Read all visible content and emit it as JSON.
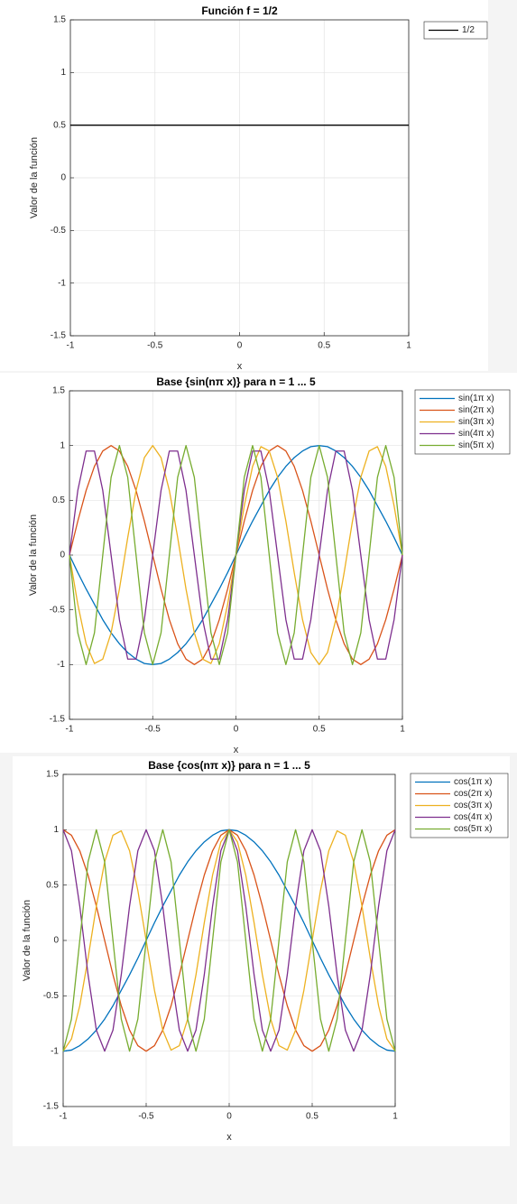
{
  "chart_data": [
    {
      "type": "line",
      "title": "Función f = 1/2",
      "x_label": "x",
      "y_label": "Valor de la función",
      "x": [
        -1,
        1
      ],
      "series": [
        {
          "name": "1/2",
          "color": "#000000",
          "values": [
            0.5,
            0.5
          ]
        }
      ],
      "xlim": [
        -1,
        1
      ],
      "xticks": [
        -1,
        -0.5,
        0,
        0.5,
        1
      ],
      "ylim": [
        -1.5,
        1.5
      ],
      "yticks": [
        -1.5,
        -1,
        -0.5,
        0,
        0.5,
        1,
        1.5
      ],
      "grid": true,
      "legend_location": "northeastoutside"
    },
    {
      "type": "line",
      "title": "Base {sin(nπ x)} para n = 1 ... 5",
      "x_label": "x",
      "y_label": "Valor de la función",
      "x": [
        -1,
        -0.95,
        -0.9,
        -0.85,
        -0.8,
        -0.75,
        -0.7,
        -0.65,
        -0.6,
        -0.55,
        -0.5,
        -0.45,
        -0.4,
        -0.35,
        -0.3,
        -0.25,
        -0.2,
        -0.15,
        -0.1,
        -0.05,
        0,
        0.05,
        0.1,
        0.15,
        0.2,
        0.25,
        0.3,
        0.35,
        0.4,
        0.45,
        0.5,
        0.55,
        0.6,
        0.65,
        0.7,
        0.75,
        0.8,
        0.85,
        0.9,
        0.95,
        1
      ],
      "series": [
        {
          "name": "sin(1π x)",
          "color": "#0072BD",
          "values": [
            0,
            -0.16,
            -0.31,
            -0.45,
            -0.59,
            -0.71,
            -0.81,
            -0.89,
            -0.95,
            -0.99,
            -1,
            -0.99,
            -0.95,
            -0.89,
            -0.81,
            -0.71,
            -0.59,
            -0.45,
            -0.31,
            -0.16,
            0,
            0.16,
            0.31,
            0.45,
            0.59,
            0.71,
            0.81,
            0.89,
            0.95,
            0.99,
            1,
            0.99,
            0.95,
            0.89,
            0.81,
            0.71,
            0.59,
            0.45,
            0.31,
            0.16,
            0
          ]
        },
        {
          "name": "sin(2π x)",
          "color": "#D95319",
          "values": [
            0,
            0.31,
            0.59,
            0.81,
            0.95,
            1,
            0.95,
            0.81,
            0.59,
            0.31,
            0,
            -0.31,
            -0.59,
            -0.81,
            -0.95,
            -1,
            -0.95,
            -0.81,
            -0.59,
            -0.31,
            0,
            0.31,
            0.59,
            0.81,
            0.95,
            1,
            0.95,
            0.81,
            0.59,
            0.31,
            0,
            -0.31,
            -0.59,
            -0.81,
            -0.95,
            -1,
            -0.95,
            -0.81,
            -0.59,
            -0.31,
            0
          ]
        },
        {
          "name": "sin(3π x)",
          "color": "#EDB120",
          "values": [
            0,
            -0.45,
            -0.81,
            -0.99,
            -0.95,
            -0.71,
            -0.31,
            0.16,
            0.59,
            0.89,
            1,
            0.89,
            0.59,
            0.16,
            -0.31,
            -0.71,
            -0.95,
            -0.99,
            -0.81,
            -0.45,
            0,
            0.45,
            0.81,
            0.99,
            0.95,
            0.71,
            0.31,
            -0.16,
            -0.59,
            -0.89,
            -1,
            -0.89,
            -0.59,
            -0.16,
            0.31,
            0.71,
            0.95,
            0.99,
            0.81,
            0.45,
            0
          ]
        },
        {
          "name": "sin(4π x)",
          "color": "#7E2F8E",
          "values": [
            0,
            0.59,
            0.95,
            0.95,
            0.59,
            0,
            -0.59,
            -0.95,
            -0.95,
            -0.59,
            0,
            0.59,
            0.95,
            0.95,
            0.59,
            0,
            -0.59,
            -0.95,
            -0.95,
            -0.59,
            0,
            0.59,
            0.95,
            0.95,
            0.59,
            0,
            -0.59,
            -0.95,
            -0.95,
            -0.59,
            0,
            0.59,
            0.95,
            0.95,
            0.59,
            0,
            -0.59,
            -0.95,
            -0.95,
            -0.59,
            0
          ]
        },
        {
          "name": "sin(5π x)",
          "color": "#77AC30",
          "values": [
            0,
            -0.71,
            -1,
            -0.71,
            0,
            0.71,
            1,
            0.71,
            0,
            -0.71,
            -1,
            -0.71,
            0,
            0.71,
            1,
            0.71,
            0,
            -0.71,
            -1,
            -0.71,
            0,
            0.71,
            1,
            0.71,
            0,
            -0.71,
            -1,
            -0.71,
            0,
            0.71,
            1,
            0.71,
            0,
            -0.71,
            -1,
            -0.71,
            0,
            0.71,
            1,
            0.71,
            0
          ]
        }
      ],
      "xlim": [
        -1,
        1
      ],
      "xticks": [
        -1,
        -0.5,
        0,
        0.5,
        1
      ],
      "ylim": [
        -1.5,
        1.5
      ],
      "yticks": [
        -1.5,
        -1,
        -0.5,
        0,
        0.5,
        1,
        1.5
      ],
      "grid": true,
      "legend_location": "northeastoutside"
    },
    {
      "type": "line",
      "title": "Base {cos(nπ x)} para n = 1 ... 5",
      "x_label": "x",
      "y_label": "Valor de la función",
      "x": [
        -1,
        -0.95,
        -0.9,
        -0.85,
        -0.8,
        -0.75,
        -0.7,
        -0.65,
        -0.6,
        -0.55,
        -0.5,
        -0.45,
        -0.4,
        -0.35,
        -0.3,
        -0.25,
        -0.2,
        -0.15,
        -0.1,
        -0.05,
        0,
        0.05,
        0.1,
        0.15,
        0.2,
        0.25,
        0.3,
        0.35,
        0.4,
        0.45,
        0.5,
        0.55,
        0.6,
        0.65,
        0.7,
        0.75,
        0.8,
        0.85,
        0.9,
        0.95,
        1
      ],
      "series": [
        {
          "name": "cos(1π x)",
          "color": "#0072BD",
          "values": [
            -1,
            -0.99,
            -0.95,
            -0.89,
            -0.81,
            -0.71,
            -0.59,
            -0.45,
            -0.31,
            -0.16,
            0,
            0.16,
            0.31,
            0.45,
            0.59,
            0.71,
            0.81,
            0.89,
            0.95,
            0.99,
            1,
            0.99,
            0.95,
            0.89,
            0.81,
            0.71,
            0.59,
            0.45,
            0.31,
            0.16,
            0,
            -0.16,
            -0.31,
            -0.45,
            -0.59,
            -0.71,
            -0.81,
            -0.89,
            -0.95,
            -0.99,
            -1
          ]
        },
        {
          "name": "cos(2π x)",
          "color": "#D95319",
          "values": [
            1,
            0.95,
            0.81,
            0.59,
            0.31,
            0,
            -0.31,
            -0.59,
            -0.81,
            -0.95,
            -1,
            -0.95,
            -0.81,
            -0.59,
            -0.31,
            0,
            0.31,
            0.59,
            0.81,
            0.95,
            1,
            0.95,
            0.81,
            0.59,
            0.31,
            0,
            -0.31,
            -0.59,
            -0.81,
            -0.95,
            -1,
            -0.95,
            -0.81,
            -0.59,
            -0.31,
            0,
            0.31,
            0.59,
            0.81,
            0.95,
            1
          ]
        },
        {
          "name": "cos(3π x)",
          "color": "#EDB120",
          "values": [
            -1,
            -0.89,
            -0.59,
            -0.16,
            0.31,
            0.71,
            0.95,
            0.99,
            0.81,
            0.45,
            0,
            -0.45,
            -0.81,
            -0.99,
            -0.95,
            -0.71,
            -0.31,
            0.16,
            0.59,
            0.89,
            1,
            0.89,
            0.59,
            0.16,
            -0.31,
            -0.71,
            -0.95,
            -0.99,
            -0.81,
            -0.45,
            0,
            0.45,
            0.81,
            0.99,
            0.95,
            0.71,
            0.31,
            -0.16,
            -0.59,
            -0.89,
            -1
          ]
        },
        {
          "name": "cos(4π x)",
          "color": "#7E2F8E",
          "values": [
            1,
            0.81,
            0.31,
            -0.31,
            -0.81,
            -1,
            -0.81,
            -0.31,
            0.31,
            0.81,
            1,
            0.81,
            0.31,
            -0.31,
            -0.81,
            -1,
            -0.81,
            -0.31,
            0.31,
            0.81,
            1,
            0.81,
            0.31,
            -0.31,
            -0.81,
            -1,
            -0.81,
            -0.31,
            0.31,
            0.81,
            1,
            0.81,
            0.31,
            -0.31,
            -0.81,
            -1,
            -0.81,
            -0.31,
            0.31,
            0.81,
            1
          ]
        },
        {
          "name": "cos(5π x)",
          "color": "#77AC30",
          "values": [
            -1,
            -0.71,
            0,
            0.71,
            1,
            0.71,
            0,
            -0.71,
            -1,
            -0.71,
            0,
            0.71,
            1,
            0.71,
            0,
            -0.71,
            -1,
            -0.71,
            0,
            0.71,
            1,
            0.71,
            0,
            -0.71,
            -1,
            -0.71,
            0,
            0.71,
            1,
            0.71,
            0,
            -0.71,
            -1,
            -0.71,
            0,
            0.71,
            1,
            0.71,
            0,
            -0.71,
            -1
          ]
        }
      ],
      "xlim": [
        -1,
        1
      ],
      "xticks": [
        -1,
        -0.5,
        0,
        0.5,
        1
      ],
      "ylim": [
        -1.5,
        1.5
      ],
      "yticks": [
        -1.5,
        -1,
        -0.5,
        0,
        0.5,
        1,
        1.5
      ],
      "grid": true,
      "legend_location": "northeastoutside"
    }
  ]
}
